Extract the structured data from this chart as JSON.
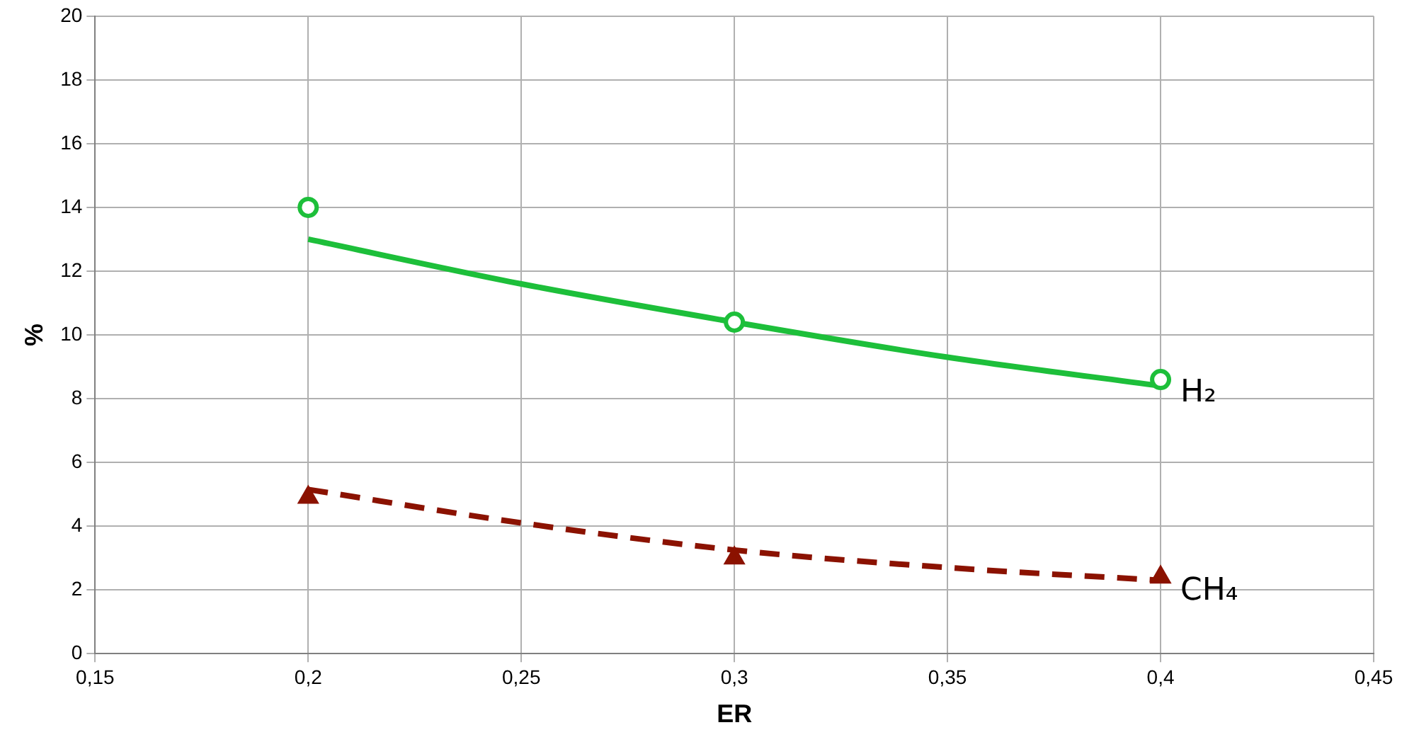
{
  "chart_data": {
    "type": "scatter",
    "xlabel": "ER",
    "ylabel": "%",
    "x": [
      0.2,
      0.3,
      0.4
    ],
    "series": [
      {
        "name": "H₂",
        "type": "scatter",
        "color": "#1dbf3a",
        "marker": "circle",
        "values": [
          14,
          10.4,
          8.6
        ]
      },
      {
        "name": "CH₄",
        "type": "scatter",
        "color": "#8b1200",
        "marker": "triangle",
        "values": [
          4.9,
          3.0,
          2.4
        ]
      },
      {
        "type": "line",
        "color": "#1dbf3a",
        "marker": "none",
        "line_style": "solid",
        "x": [
          0.2,
          0.25,
          0.3,
          0.35,
          0.4
        ],
        "values": [
          13.0,
          11.6,
          10.4,
          9.3,
          8.4
        ]
      },
      {
        "type": "line",
        "color": "#8b1200",
        "marker": "none",
        "line_style": "dashed",
        "x": [
          0.2,
          0.25,
          0.3,
          0.35,
          0.4
        ],
        "values": [
          5.15,
          4.1,
          3.25,
          2.7,
          2.3
        ]
      }
    ],
    "xlim": [
      0.15,
      0.45
    ],
    "xticks": [
      {
        "value": 0.15,
        "label": "0,15"
      },
      {
        "value": 0.2,
        "label": "0,2"
      },
      {
        "value": 0.25,
        "label": "0,25"
      },
      {
        "value": 0.3,
        "label": "0,3"
      },
      {
        "value": 0.35,
        "label": "0,35"
      },
      {
        "value": 0.4,
        "label": "0,4"
      },
      {
        "value": 0.45,
        "label": "0,45"
      }
    ],
    "ylim": [
      0,
      20
    ],
    "yticks": [
      0,
      2,
      4,
      6,
      8,
      10,
      12,
      14,
      16,
      18,
      20
    ],
    "grid": true,
    "legend": false
  }
}
